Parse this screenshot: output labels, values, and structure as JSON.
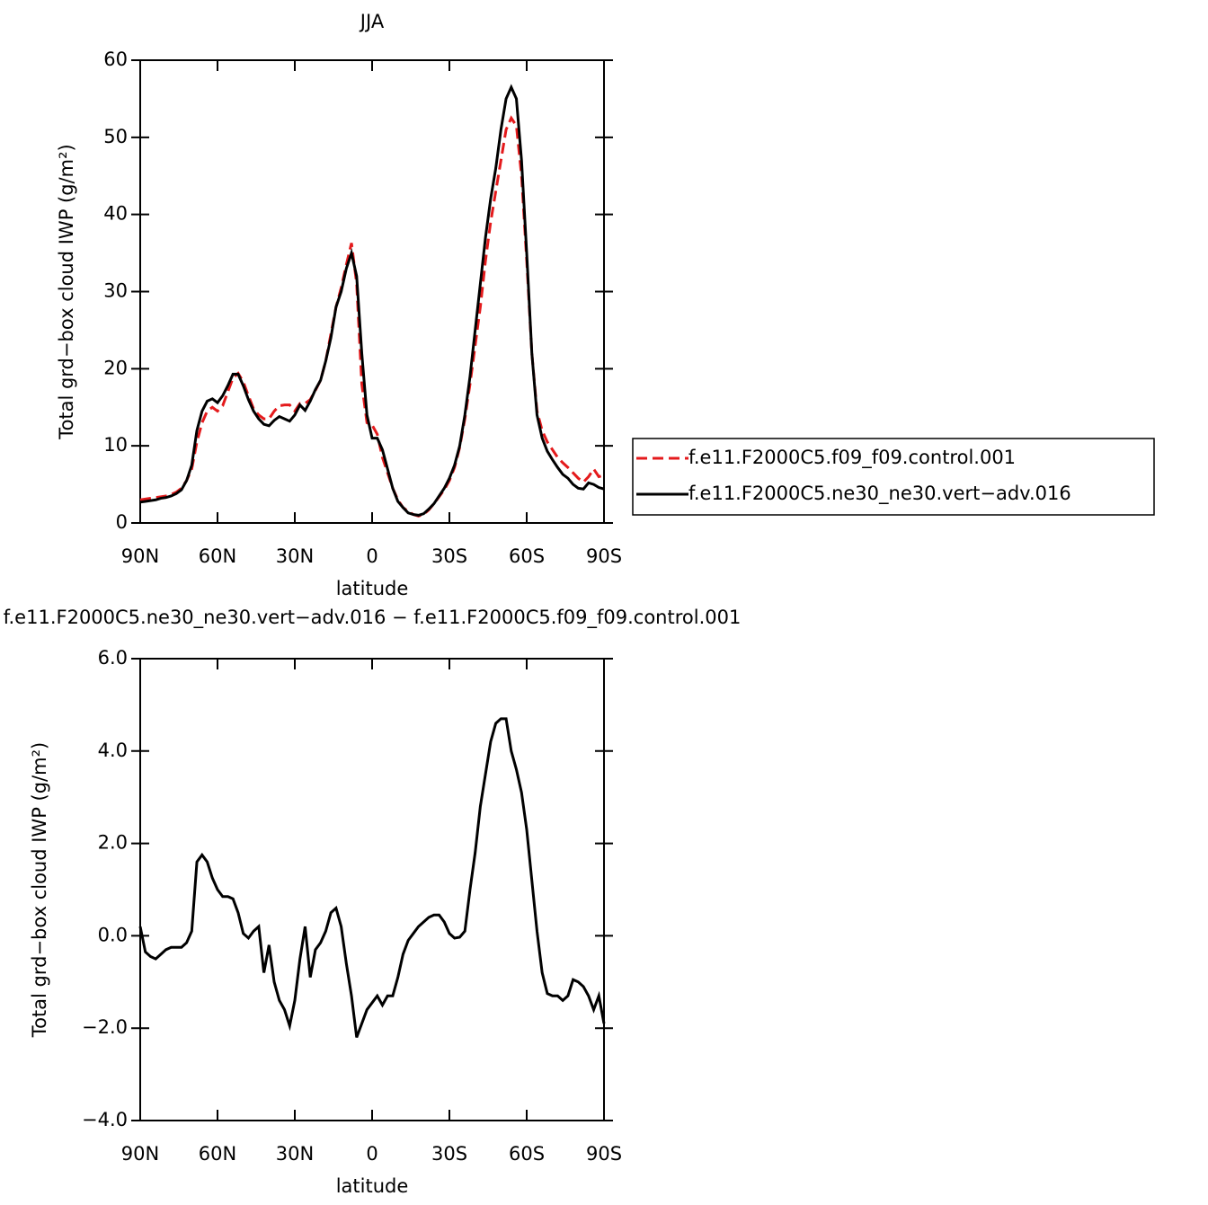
{
  "chart_data": [
    {
      "type": "line",
      "title": "JJA",
      "xlabel": "latitude",
      "ylabel": "Total grd−box cloud IWP (g/m²)",
      "x": [
        90,
        88,
        86,
        84,
        82,
        80,
        78,
        76,
        74,
        72,
        70,
        68,
        66,
        64,
        62,
        60,
        58,
        56,
        54,
        52,
        50,
        48,
        46,
        44,
        42,
        40,
        38,
        36,
        34,
        32,
        30,
        28,
        26,
        24,
        22,
        20,
        18,
        16,
        14,
        12,
        10,
        8,
        6,
        4,
        2,
        0,
        -2,
        -4,
        -6,
        -8,
        -10,
        -12,
        -14,
        -16,
        -18,
        -20,
        -22,
        -24,
        -26,
        -28,
        -30,
        -32,
        -34,
        -36,
        -38,
        -40,
        -42,
        -44,
        -46,
        -48,
        -50,
        -52,
        -54,
        -56,
        -58,
        -60,
        -62,
        -64,
        -66,
        -68,
        -70,
        -72,
        -74,
        -76,
        -78,
        -80,
        -82,
        -84,
        -86,
        -88,
        -90
      ],
      "series": [
        {
          "name": "f.e11.F2000C5.f09_f09.control.001",
          "color": "#e41a1c",
          "dash": true,
          "values": [
            3.0,
            3.1,
            3.2,
            3.3,
            3.4,
            3.5,
            3.7,
            4.0,
            4.5,
            5.5,
            7.0,
            10.5,
            13.0,
            14.5,
            15.0,
            14.5,
            15.2,
            17.0,
            18.8,
            19.4,
            18.3,
            16.5,
            14.8,
            14.0,
            13.5,
            13.5,
            14.5,
            15.2,
            15.3,
            15.3,
            14.5,
            15.5,
            15.5,
            16.0,
            17.2,
            18.5,
            21.0,
            24.5,
            28.0,
            30.5,
            33.5,
            36.3,
            31.0,
            18.0,
            13.0,
            12.7,
            11.5,
            8.5,
            6.5,
            4.5,
            3.0,
            2.0,
            1.5,
            1.1,
            0.9,
            1.1,
            1.7,
            2.5,
            3.4,
            4.3,
            5.5,
            7.2,
            9.8,
            13.5,
            18.0,
            23.0,
            28.0,
            34.0,
            39.0,
            43.0,
            47.0,
            51.0,
            52.5,
            51.5,
            45.0,
            34.0,
            22.0,
            14.5,
            12.0,
            10.5,
            9.5,
            8.5,
            7.8,
            7.2,
            6.5,
            5.8,
            5.3,
            6.0,
            7.0,
            6.0,
            6.2
          ]
        },
        {
          "name": "f.e11.F2000C5.ne30_ne30.vert−adv.016",
          "color": "#000000",
          "dash": false,
          "values": [
            2.7,
            2.8,
            2.9,
            3.0,
            3.2,
            3.3,
            3.5,
            3.8,
            4.3,
            5.5,
            7.5,
            12.0,
            14.5,
            15.8,
            16.1,
            15.6,
            16.5,
            17.8,
            19.3,
            19.3,
            17.8,
            16.0,
            14.5,
            13.5,
            12.8,
            12.6,
            13.3,
            13.8,
            13.5,
            13.2,
            14.0,
            15.3,
            14.6,
            15.8,
            17.3,
            18.5,
            21.0,
            24.0,
            28.0,
            30.0,
            33.0,
            35.0,
            32.0,
            22.0,
            14.0,
            11.0,
            11.0,
            9.5,
            7.0,
            4.5,
            2.8,
            2.0,
            1.3,
            1.1,
            1.0,
            1.2,
            1.8,
            2.5,
            3.5,
            4.5,
            5.8,
            7.5,
            10.0,
            14.0,
            19.0,
            25.0,
            31.0,
            37.0,
            42.0,
            46.0,
            51.0,
            55.0,
            56.5,
            55.0,
            47.0,
            35.0,
            22.0,
            14.0,
            11.0,
            9.3,
            8.2,
            7.2,
            6.3,
            5.8,
            5.0,
            4.5,
            4.4,
            5.2,
            5.0,
            4.6,
            4.4
          ]
        }
      ],
      "xlim": [
        90,
        -90
      ],
      "xticks": [
        {
          "value": 90,
          "label": "90N"
        },
        {
          "value": 60,
          "label": "60N"
        },
        {
          "value": 30,
          "label": "30N"
        },
        0,
        {
          "value": -30,
          "label": "30S"
        },
        {
          "value": -60,
          "label": "60S"
        },
        {
          "value": -90,
          "label": "90S"
        }
      ],
      "ylim": [
        0,
        60
      ],
      "yticks": [
        0,
        10,
        20,
        30,
        40,
        50,
        60
      ],
      "legend": "right"
    },
    {
      "type": "line",
      "title": "f.e11.F2000C5.ne30_ne30.vert−adv.016 − f.e11.F2000C5.f09_f09.control.001",
      "xlabel": "latitude",
      "ylabel": "Total grd−box cloud IWP (g/m²)",
      "x": [
        90,
        88,
        86,
        84,
        82,
        80,
        78,
        76,
        74,
        72,
        70,
        68,
        66,
        64,
        62,
        60,
        58,
        56,
        54,
        52,
        50,
        48,
        46,
        44,
        42,
        40,
        38,
        36,
        34,
        32,
        30,
        28,
        26,
        24,
        22,
        20,
        18,
        16,
        14,
        12,
        10,
        8,
        6,
        4,
        2,
        0,
        -2,
        -4,
        -6,
        -8,
        -10,
        -12,
        -14,
        -16,
        -18,
        -20,
        -22,
        -24,
        -26,
        -28,
        -30,
        -32,
        -34,
        -36,
        -38,
        -40,
        -42,
        -44,
        -46,
        -48,
        -50,
        -52,
        -54,
        -56,
        -58,
        -60,
        -62,
        -64,
        -66,
        -68,
        -70,
        -72,
        -74,
        -76,
        -78,
        -80,
        -82,
        -84,
        -86,
        -88,
        -90
      ],
      "series": [
        {
          "color": "#000000",
          "dash": false,
          "values": [
            0.2,
            -0.35,
            -0.45,
            -0.5,
            -0.4,
            -0.3,
            -0.25,
            -0.25,
            -0.25,
            -0.15,
            0.1,
            1.6,
            1.75,
            1.6,
            1.25,
            1.0,
            0.85,
            0.85,
            0.8,
            0.5,
            0.05,
            -0.05,
            0.1,
            0.2,
            -0.8,
            -0.2,
            -1.0,
            -1.4,
            -1.6,
            -1.95,
            -1.4,
            -0.5,
            0.2,
            -0.9,
            -0.3,
            -0.15,
            0.1,
            0.5,
            0.6,
            0.2,
            -0.6,
            -1.3,
            -2.2,
            -1.9,
            -1.6,
            -1.45,
            -1.3,
            -1.5,
            -1.3,
            -1.3,
            -0.9,
            -0.4,
            -0.1,
            0.05,
            0.2,
            0.3,
            0.4,
            0.45,
            0.45,
            0.3,
            0.05,
            -0.05,
            -0.03,
            0.1,
            1.0,
            1.8,
            2.8,
            3.5,
            4.2,
            4.6,
            4.7,
            4.7,
            4.0,
            3.6,
            3.1,
            2.3,
            1.2,
            0.1,
            -0.8,
            -1.25,
            -1.3,
            -1.3,
            -1.4,
            -1.3,
            -0.95,
            -1.0,
            -1.1,
            -1.3,
            -1.6,
            -1.3,
            -1.9
          ]
        }
      ],
      "xlim": [
        90,
        -90
      ],
      "xticks": [
        {
          "value": 90,
          "label": "90N"
        },
        {
          "value": 60,
          "label": "60N"
        },
        {
          "value": 30,
          "label": "30N"
        },
        0,
        {
          "value": -30,
          "label": "30S"
        },
        {
          "value": -60,
          "label": "60S"
        },
        {
          "value": -90,
          "label": "90S"
        }
      ],
      "ylim": [
        -4,
        6
      ],
      "yticks": [
        {
          "value": -4,
          "label": "−4.0"
        },
        {
          "value": -2,
          "label": "−2.0"
        },
        {
          "value": 0,
          "label": "0.0"
        },
        {
          "value": 2,
          "label": "2.0"
        },
        {
          "value": 4,
          "label": "4.0"
        },
        {
          "value": 6,
          "label": "6.0"
        }
      ]
    }
  ]
}
